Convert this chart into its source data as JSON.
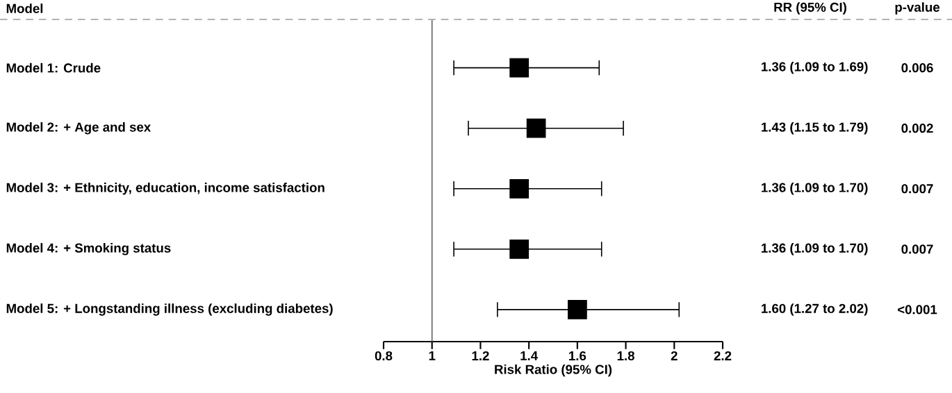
{
  "chart_data": {
    "type": "scatter",
    "orientation": "horizontal",
    "ylabel": "Model",
    "xlabel": "Risk Ratio (95% CI)",
    "categories": [
      "Model 1: Crude",
      "Model 2: + Age and sex",
      "Model 3: + Ethnicity, education, income satisfaction",
      "Model 4: + Smoking status",
      "Model 5: + Longstanding illness (excluding diabetes)"
    ],
    "series": [
      {
        "color": "#000000",
        "values": [
          1.36,
          1.43,
          1.36,
          1.36,
          1.6
        ],
        "errors": [
          [
            1.09,
            1.69
          ],
          [
            1.15,
            1.79
          ],
          [
            1.09,
            1.7
          ],
          [
            1.09,
            1.7
          ],
          [
            1.27,
            2.02
          ]
        ],
        "value_labels": [
          "1.36 (1.09 to 1.69)",
          "1.43 (1.15 to 1.79)",
          "1.36 (1.09 to 1.70)",
          "1.36 (1.09 to 1.70)",
          "1.60 (1.27 to 2.02)"
        ]
      }
    ],
    "marker": "square",
    "xlim": [
      0.8,
      2.2
    ],
    "xticks": [
      0.8,
      1,
      1.2,
      1.4,
      1.6,
      1.8,
      2,
      2.2
    ],
    "ref_lines": [
      {
        "axis": "x",
        "value": 1,
        "color": "#606060"
      }
    ],
    "annotations": [
      "RR (95% CI)",
      "p-value",
      "0.006",
      "0.002",
      "0.007",
      "0.007",
      "<0.001"
    ]
  }
}
